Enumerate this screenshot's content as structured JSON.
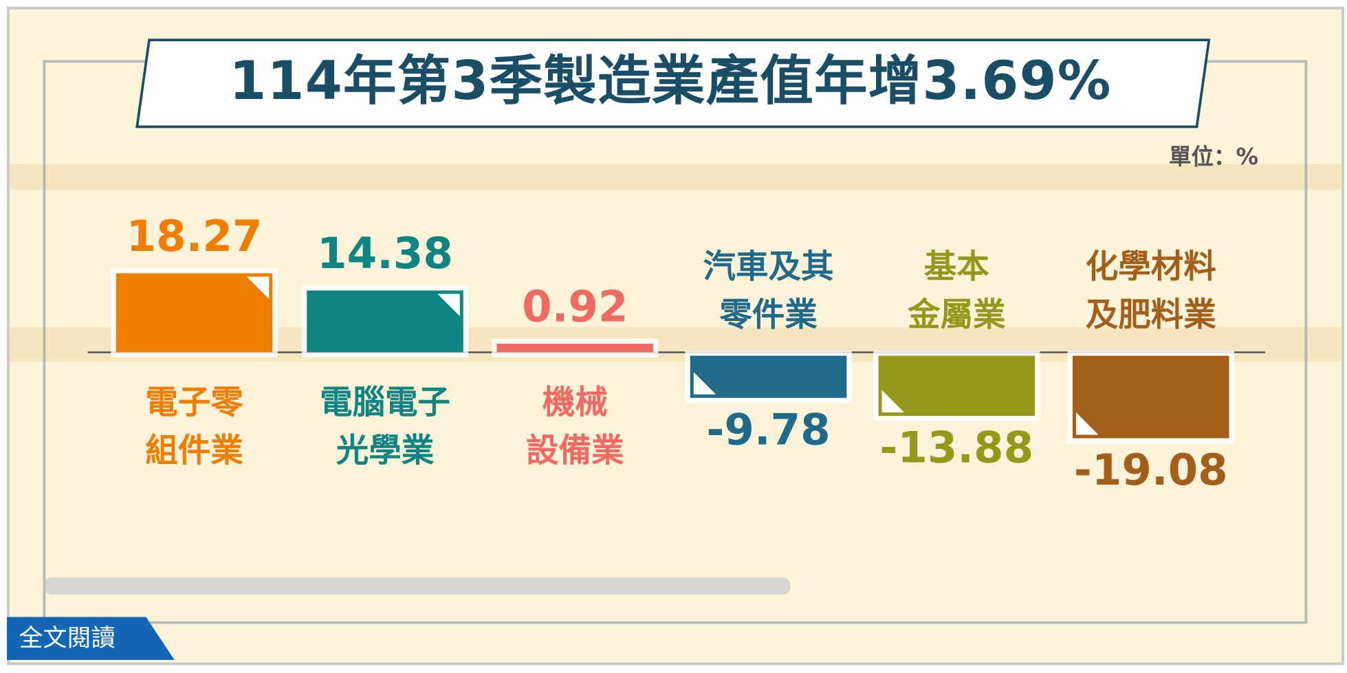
{
  "title": "114年第3季製造業產值年增3.69%",
  "unit_label": "單位：%",
  "read_more_button": "全文閱讀",
  "chart_data": {
    "type": "bar",
    "title": "114年第3季製造業產值年增3.69%",
    "unit": "%",
    "categories": [
      "電子零\n組件業",
      "電腦電子\n光學業",
      "機械\n設備業",
      "汽車及其\n零件業",
      "基本\n金屬業",
      "化學材料\n及肥料業"
    ],
    "values": [
      18.27,
      14.38,
      0.92,
      -9.78,
      -13.88,
      -19.08
    ],
    "value_labels": [
      "18.27",
      "14.38",
      "0.92",
      "-9.78",
      "-13.88",
      "-19.08"
    ],
    "colors": [
      "#ef7d00",
      "#0e8583",
      "#ee6a63",
      "#1f6a8a",
      "#97971b",
      "#a35e1a"
    ],
    "grid": false
  }
}
